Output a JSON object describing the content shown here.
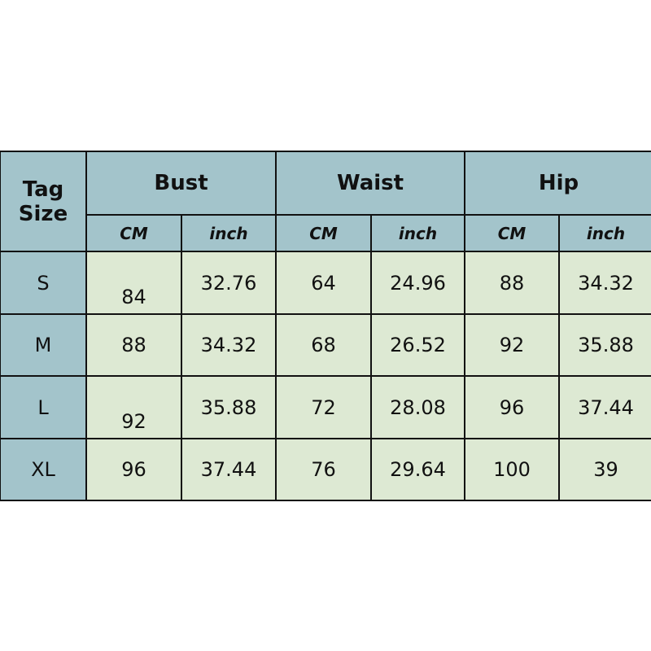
{
  "header": {
    "tag_size": "Tag Size",
    "groups": [
      "Bust",
      "Waist",
      "Hip"
    ],
    "units": [
      "CM",
      "inch",
      "CM",
      "inch",
      "CM",
      "inch"
    ]
  },
  "rows": [
    {
      "size": "S",
      "values": [
        "84",
        "32.76",
        "64",
        "24.96",
        "88",
        "34.32"
      ]
    },
    {
      "size": "M",
      "values": [
        "88",
        "34.32",
        "68",
        "26.52",
        "92",
        "35.88"
      ]
    },
    {
      "size": "L",
      "values": [
        "92",
        "35.88",
        "72",
        "28.08",
        "96",
        "37.44"
      ]
    },
    {
      "size": "XL",
      "values": [
        "96",
        "37.44",
        "76",
        "29.64",
        "100",
        "39"
      ]
    }
  ],
  "colors": {
    "header_bg": "#a3c4cb",
    "cell_bg": "#dde9d3",
    "border": "#111111"
  }
}
